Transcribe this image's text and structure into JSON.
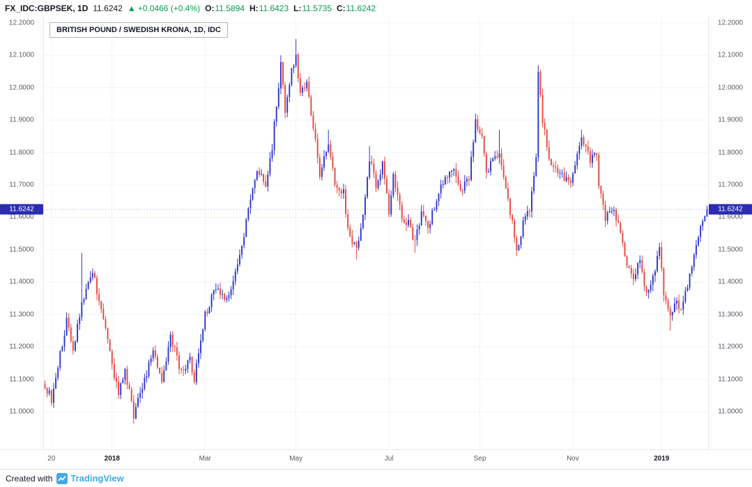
{
  "header": {
    "symbol": "FX_IDC:GBPSEK, 1D",
    "last": "11.6242",
    "arrow": "▲",
    "change": "+0.0466 (+0.4%)",
    "o_label": "O:",
    "o": "11.5894",
    "h_label": "H:",
    "h": "11.6423",
    "l_label": "L:",
    "l": "11.5735",
    "c_label": "C:",
    "c": "11.6242"
  },
  "chart": {
    "title": "BRITISH POUND / SWEDISH KRONA, 1D, IDC",
    "price_label": "11.6242"
  },
  "footer": {
    "created_with": "Created with",
    "brand": "TradingView"
  },
  "colors": {
    "positive": "#089950",
    "text": "#131722",
    "brand": "#3fa9e6",
    "up_candle": "#2d35cc",
    "down_candle": "#e8463f",
    "price_label_bg": "#2c2cb0"
  },
  "chart_data": {
    "type": "candlestick",
    "symbol": "FX_IDC:GBPSEK",
    "interval": "1D",
    "title": "BRITISH POUND / SWEDISH KRONA, 1D, IDC",
    "last_price": 11.6242,
    "ohlc_current": {
      "open": 11.5894,
      "high": 11.6423,
      "low": 11.5735,
      "close": 11.6242
    },
    "change": {
      "abs": 0.0466,
      "pct": 0.4
    },
    "y_min": 10.884,
    "y_max": 12.219,
    "y_ticks": [
      12.2,
      12.1,
      12.0,
      11.9,
      11.8,
      11.7,
      11.6,
      11.5,
      11.4,
      11.3,
      11.2,
      11.1,
      11.0
    ],
    "x_ticks": [
      {
        "label": "20",
        "i": 3,
        "bold": false
      },
      {
        "label": "2018",
        "i": 31,
        "bold": true
      },
      {
        "label": "Mar",
        "i": 74,
        "bold": false
      },
      {
        "label": "May",
        "i": 116,
        "bold": false
      },
      {
        "label": "Jul",
        "i": 159,
        "bold": false
      },
      {
        "label": "Sep",
        "i": 201,
        "bold": false
      },
      {
        "label": "Nov",
        "i": 244,
        "bold": false
      },
      {
        "label": "2019",
        "i": 285,
        "bold": true
      }
    ],
    "n_bars": 307,
    "seed": 9,
    "noise": 0.026,
    "wick": 0.02,
    "up_color": "#2d35cc",
    "down_color": "#e8463f",
    "grid_color": "#f2f3f6",
    "price_label_bg": "#2c2cb0",
    "price_line_color": "#2c2cb0",
    "keypoints": [
      [
        0,
        11.08
      ],
      [
        3,
        11.04
      ],
      [
        10,
        11.28
      ],
      [
        13,
        11.19
      ],
      [
        17,
        11.34
      ],
      [
        22,
        11.43
      ],
      [
        26,
        11.32
      ],
      [
        31,
        11.15
      ],
      [
        34,
        11.05
      ],
      [
        37,
        11.13
      ],
      [
        41,
        10.99
      ],
      [
        45,
        11.08
      ],
      [
        50,
        11.18
      ],
      [
        54,
        11.1
      ],
      [
        58,
        11.23
      ],
      [
        63,
        11.12
      ],
      [
        67,
        11.16
      ],
      [
        69,
        11.1
      ],
      [
        74,
        11.3
      ],
      [
        79,
        11.38
      ],
      [
        84,
        11.35
      ],
      [
        89,
        11.45
      ],
      [
        94,
        11.62
      ],
      [
        98,
        11.75
      ],
      [
        102,
        11.7
      ],
      [
        105,
        11.82
      ],
      [
        107,
        11.95
      ],
      [
        109,
        12.07
      ],
      [
        111,
        11.93
      ],
      [
        114,
        12.05
      ],
      [
        116,
        12.1
      ],
      [
        118,
        11.98
      ],
      [
        121,
        12.02
      ],
      [
        124,
        11.88
      ],
      [
        127,
        11.73
      ],
      [
        131,
        11.83
      ],
      [
        134,
        11.7
      ],
      [
        138,
        11.68
      ],
      [
        140,
        11.56
      ],
      [
        144,
        11.5
      ],
      [
        147,
        11.62
      ],
      [
        150,
        11.78
      ],
      [
        153,
        11.7
      ],
      [
        156,
        11.76
      ],
      [
        159,
        11.62
      ],
      [
        161,
        11.73
      ],
      [
        165,
        11.6
      ],
      [
        168,
        11.58
      ],
      [
        171,
        11.52
      ],
      [
        174,
        11.62
      ],
      [
        177,
        11.57
      ],
      [
        182,
        11.68
      ],
      [
        185,
        11.72
      ],
      [
        189,
        11.76
      ],
      [
        192,
        11.68
      ],
      [
        196,
        11.72
      ],
      [
        199,
        11.9
      ],
      [
        202,
        11.85
      ],
      [
        204,
        11.74
      ],
      [
        207,
        11.78
      ],
      [
        210,
        11.8
      ],
      [
        213,
        11.68
      ],
      [
        215,
        11.62
      ],
      [
        218,
        11.5
      ],
      [
        221,
        11.58
      ],
      [
        224,
        11.62
      ],
      [
        227,
        11.78
      ],
      [
        228,
        12.05
      ],
      [
        230,
        11.9
      ],
      [
        233,
        11.78
      ],
      [
        236,
        11.75
      ],
      [
        240,
        11.72
      ],
      [
        243,
        11.7
      ],
      [
        246,
        11.8
      ],
      [
        248,
        11.85
      ],
      [
        252,
        11.78
      ],
      [
        255,
        11.8
      ],
      [
        256,
        11.7
      ],
      [
        259,
        11.6
      ],
      [
        262,
        11.63
      ],
      [
        265,
        11.58
      ],
      [
        269,
        11.45
      ],
      [
        272,
        11.42
      ],
      [
        275,
        11.46
      ],
      [
        278,
        11.36
      ],
      [
        282,
        11.44
      ],
      [
        284,
        11.5
      ],
      [
        286,
        11.36
      ],
      [
        289,
        11.3
      ],
      [
        291,
        11.34
      ],
      [
        294,
        11.32
      ],
      [
        298,
        11.42
      ],
      [
        301,
        11.52
      ],
      [
        304,
        11.58
      ],
      [
        306,
        11.6242
      ]
    ],
    "spikes_high": [
      [
        17,
        11.49
      ],
      [
        109,
        12.1
      ],
      [
        116,
        12.15
      ],
      [
        131,
        11.87
      ],
      [
        150,
        11.82
      ],
      [
        199,
        11.92
      ],
      [
        210,
        11.87
      ],
      [
        228,
        12.07
      ],
      [
        248,
        11.87
      ]
    ],
    "spikes_low": [
      [
        41,
        10.97
      ],
      [
        144,
        11.47
      ],
      [
        171,
        11.49
      ],
      [
        218,
        11.48
      ],
      [
        289,
        11.25
      ]
    ]
  }
}
